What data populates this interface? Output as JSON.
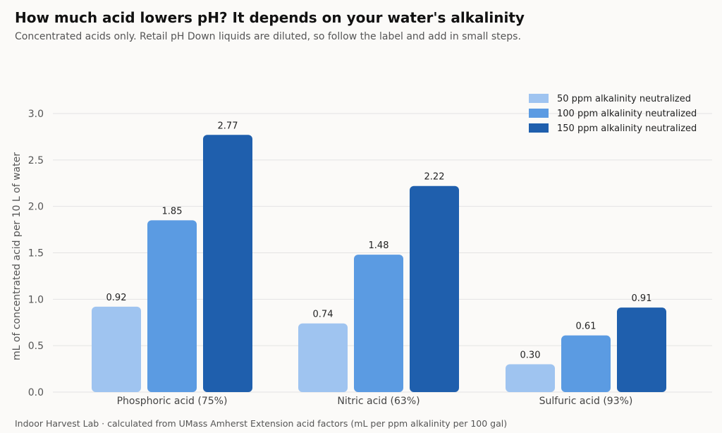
{
  "header": {
    "title": "How much acid lowers pH? It depends on your water's alkalinity",
    "subtitle": "Concentrated acids only. Retail pH Down liquids are diluted, so follow the label and add in small steps."
  },
  "footer": {
    "source": "Indoor Harvest Lab · calculated from UMass Amherst Extension acid factors (mL per ppm alkalinity per 100 gal)"
  },
  "chart_data": {
    "type": "bar",
    "categories": [
      "Phosphoric acid (75%)",
      "Nitric acid (63%)",
      "Sulfuric acid (93%)"
    ],
    "series": [
      {
        "name": "50 ppm alkalinity neutralized",
        "color": "#9fc4f0",
        "values": [
          0.92,
          0.74,
          0.3
        ]
      },
      {
        "name": "100 ppm alkalinity neutralized",
        "color": "#5b9be2",
        "values": [
          1.85,
          1.48,
          0.61
        ]
      },
      {
        "name": "150 ppm alkalinity neutralized",
        "color": "#1f5fad",
        "values": [
          2.77,
          2.22,
          0.91
        ]
      }
    ],
    "data_labels": [
      [
        "0.92",
        "0.74",
        "0.30"
      ],
      [
        "1.85",
        "1.48",
        "0.61"
      ],
      [
        "2.77",
        "2.22",
        "0.91"
      ]
    ],
    "ylabel": "mL of concentrated acid per 10 L of water",
    "xlabel": "",
    "ylim": [
      0,
      3.0
    ],
    "yticks": [
      "0.0",
      "0.5",
      "1.0",
      "1.5",
      "2.0",
      "2.5",
      "3.0"
    ],
    "grid": true,
    "legend_position": "top-right"
  }
}
